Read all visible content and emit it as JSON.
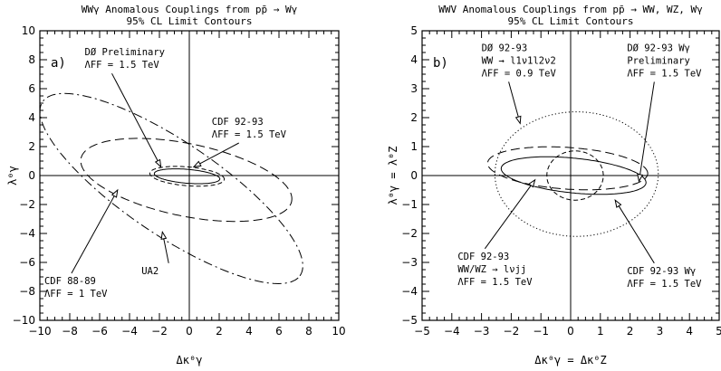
{
  "chart_data": [
    {
      "type": "line",
      "panel_label": "a)",
      "title_lines": [
        "WWγ Anomalous Couplings from pp̄ → Wγ",
        "95% CL Limit Contours"
      ],
      "xlabel": "Δκ⁰γ",
      "ylabel": "λ⁰γ",
      "xlim": [
        -10,
        10
      ],
      "ylim": [
        -10,
        10
      ],
      "xticks": [
        -10,
        -8,
        -6,
        -4,
        -2,
        0,
        2,
        4,
        6,
        8,
        10
      ],
      "yticks": [
        -10,
        -8,
        -6,
        -4,
        -2,
        0,
        2,
        4,
        6,
        8,
        10
      ],
      "grid": false,
      "series": [
        {
          "name": "DØ Preliminary ΛFF = 1.5 TeV",
          "style": "solid",
          "center": [
            -0.15,
            -0.05
          ],
          "semi_axes": [
            2.2,
            0.48
          ],
          "angle_deg": -5
        },
        {
          "name": "CDF 92-93 ΛFF = 1.5 TeV",
          "style": "dashed",
          "center": [
            -0.15,
            -0.05
          ],
          "semi_axes": [
            2.5,
            0.65
          ],
          "angle_deg": -5
        },
        {
          "name": "CDF 88-89 ΛFF = 1 TeV",
          "style": "longdash",
          "center": [
            -0.2,
            -0.3
          ],
          "semi_axes": [
            7.2,
            2.5
          ],
          "angle_deg": -12
        },
        {
          "name": "UA2",
          "style": "dashdot",
          "center": [
            -1.2,
            -0.9
          ],
          "semi_axes": [
            10.5,
            3.2
          ],
          "angle_deg": -35
        }
      ],
      "annotations": [
        {
          "lines": [
            "DØ Preliminary",
            "ΛFF = 1.5 TeV"
          ],
          "x": -7.0,
          "y": 8.3,
          "arrow_to": [
            -1.9,
            0.6
          ]
        },
        {
          "lines": [
            "CDF 92-93",
            "ΛFF = 1.5 TeV"
          ],
          "x": 1.5,
          "y": 3.5,
          "arrow_to": [
            0.3,
            0.6
          ]
        },
        {
          "lines": [
            "CDF 88-89",
            "ΛFF = 1 TeV"
          ],
          "x": -9.7,
          "y": -7.5,
          "arrow_to": [
            -4.8,
            -1.0
          ]
        },
        {
          "lines": [
            "UA2"
          ],
          "x": -3.2,
          "y": -6.8,
          "arrow_to": [
            -1.8,
            -3.9
          ]
        }
      ]
    },
    {
      "type": "line",
      "panel_label": "b)",
      "title_lines": [
        "WWV Anomalous Couplings from pp̄ → WW,  WZ, Wγ",
        "95% CL Limit Contours"
      ],
      "xlabel": "Δκ⁰γ = Δκ⁰Z",
      "ylabel": "λ⁰γ = λ⁰Z",
      "xlim": [
        -5,
        5
      ],
      "ylim": [
        -5,
        5
      ],
      "xticks": [
        -5,
        -4,
        -3,
        -2,
        -1,
        0,
        1,
        2,
        3,
        4,
        5
      ],
      "yticks": [
        -5,
        -4,
        -3,
        -2,
        -1,
        0,
        1,
        2,
        3,
        4,
        5
      ],
      "grid": false,
      "series": [
        {
          "name": "DØ 92-93 WW → l1ν1l2ν2 ΛFF = 0.9 TeV",
          "style": "dotted",
          "center": [
            0.2,
            0.05
          ],
          "semi_axes": [
            2.75,
            2.15
          ],
          "angle_deg": 0
        },
        {
          "name": "DØ 92-93 Wγ Preliminary ΛFF = 1.5 TeV",
          "style": "solid",
          "center": [
            0.1,
            0.0
          ],
          "semi_axes": [
            2.45,
            0.6
          ],
          "angle_deg": -6
        },
        {
          "name": "CDF 92-93 WW/WZ → lνjj ΛFF = 1.5 TeV",
          "style": "longdash",
          "center": [
            -0.1,
            0.25
          ],
          "semi_axes": [
            2.7,
            0.72
          ],
          "angle_deg": -4
        },
        {
          "name": "CDF 92-93 Wγ ΛFF = 1.5 TeV",
          "style": "dashed",
          "center": [
            0.15,
            0.0
          ],
          "semi_axes": [
            0.95,
            0.85
          ],
          "angle_deg": 0
        }
      ],
      "annotations": [
        {
          "lines": [
            "DØ 92-93",
            "WW → l1ν1l2ν2",
            "ΛFF = 0.9 TeV"
          ],
          "x": -3.0,
          "y": 4.3,
          "arrow_to": [
            -1.7,
            1.8
          ]
        },
        {
          "lines": [
            "DØ 92-93 Wγ",
            "Preliminary",
            "ΛFF = 1.5 TeV"
          ],
          "x": 1.9,
          "y": 4.3,
          "arrow_to": [
            2.3,
            -0.2
          ]
        },
        {
          "lines": [
            "CDF 92-93",
            "WW/WZ → lνjj",
            "ΛFF = 1.5 TeV"
          ],
          "x": -3.8,
          "y": -2.9,
          "arrow_to": [
            -1.2,
            -0.15
          ]
        },
        {
          "lines": [
            "CDF 92-93 Wγ",
            "ΛFF = 1.5 TeV"
          ],
          "x": 1.9,
          "y": -3.4,
          "arrow_to": [
            1.5,
            -0.85
          ]
        }
      ]
    }
  ]
}
